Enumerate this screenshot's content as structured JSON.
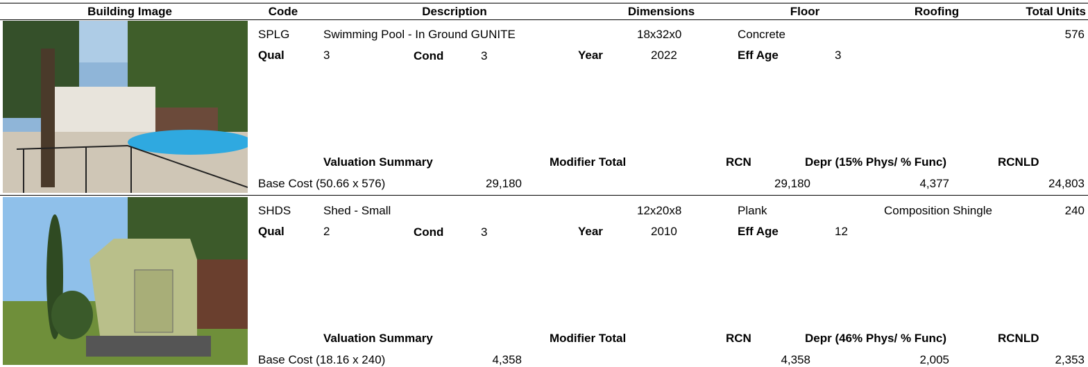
{
  "header": {
    "columns": [
      "Building Image",
      "Code",
      "Description",
      "Dimensions",
      "Floor",
      "Roofing",
      "Total Units"
    ]
  },
  "records": [
    {
      "code": "SPLG",
      "description": "Swimming Pool - In Ground GUNITE",
      "dimensions": "18x32x0",
      "floor": "Concrete",
      "total_units": "576",
      "qual_label": "Qual",
      "qual": "3",
      "cond_label": "Cond",
      "cond": "3",
      "year_label": "Year",
      "year": "2022",
      "eff_age_label": "Eff Age",
      "eff_age": "3",
      "valuation_headers": [
        "Valuation Summary",
        "Modifier Total",
        "RCN",
        "Depr (15% Phys/ % Func)",
        "RCNLD"
      ],
      "base_cost": {
        "label": "Base Cost (50.66 x 576)",
        "amount": "29,180",
        "rcn": "29,180",
        "depr": "4,377",
        "rcnld": "24,803"
      }
    },
    {
      "code": "SHDS",
      "description": "Shed - Small",
      "dimensions": "12x20x8",
      "floor": "Plank",
      "roofing": "Composition Shingle",
      "total_units": "240",
      "qual_label": "Qual",
      "qual": "2",
      "cond_label": "Cond",
      "cond": "3",
      "year_label": "Year",
      "year": "2010",
      "eff_age_label": "Eff Age",
      "eff_age": "12",
      "valuation_headers": [
        "Valuation Summary",
        "Modifier Total",
        "RCN",
        "Depr (46% Phys/ % Func)",
        "RCNLD"
      ],
      "base_cost": {
        "label": "Base Cost (18.16 x 240)",
        "amount": "4,358",
        "rcn": "4,358",
        "depr": "2,005",
        "rcnld": "2,353"
      }
    }
  ]
}
